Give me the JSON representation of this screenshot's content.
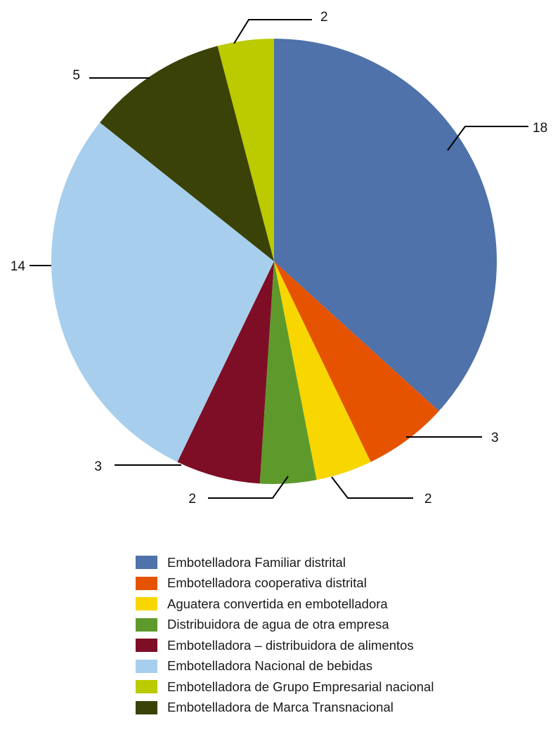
{
  "chart_data": {
    "type": "pie",
    "title": "",
    "start_angle_deg": 0,
    "direction": "clockwise",
    "legend_position": "bottom",
    "slices": [
      {
        "label": "Embotelladora Familiar distrital",
        "value": 18,
        "color": "#4e72a9"
      },
      {
        "label": "Embotelladora cooperativa distrital",
        "value": 3,
        "color": "#e65300"
      },
      {
        "label": "Aguatera convertida en embotelladora",
        "value": 2,
        "color": "#f8d600"
      },
      {
        "label": "Distribuidora de agua de otra empresa",
        "value": 2,
        "color": "#5d9a2b"
      },
      {
        "label": "Embotelladora – distribuidora de alimentos",
        "value": 3,
        "color": "#7d0e25"
      },
      {
        "label": "Embotelladora Nacional de bebidas",
        "value": 14,
        "color": "#a7cfed"
      },
      {
        "label": "Embotelladora de Marca Transnacional",
        "value": 5,
        "color": "#3a4207"
      },
      {
        "label": "Embotelladora de Grupo Empresarial nacional",
        "value": 2,
        "color": "#bcca00"
      }
    ],
    "legend_order": [
      "Embotelladora Familiar distrital",
      "Embotelladora cooperativa distrital",
      "Aguatera convertida en embotelladora",
      "Distribuidora de agua de otra empresa",
      "Embotelladora – distribuidora de alimentos",
      "Embotelladora Nacional de bebidas",
      "Embotelladora de Grupo Empresarial nacional",
      "Embotelladora de Marca Transnacional"
    ]
  }
}
